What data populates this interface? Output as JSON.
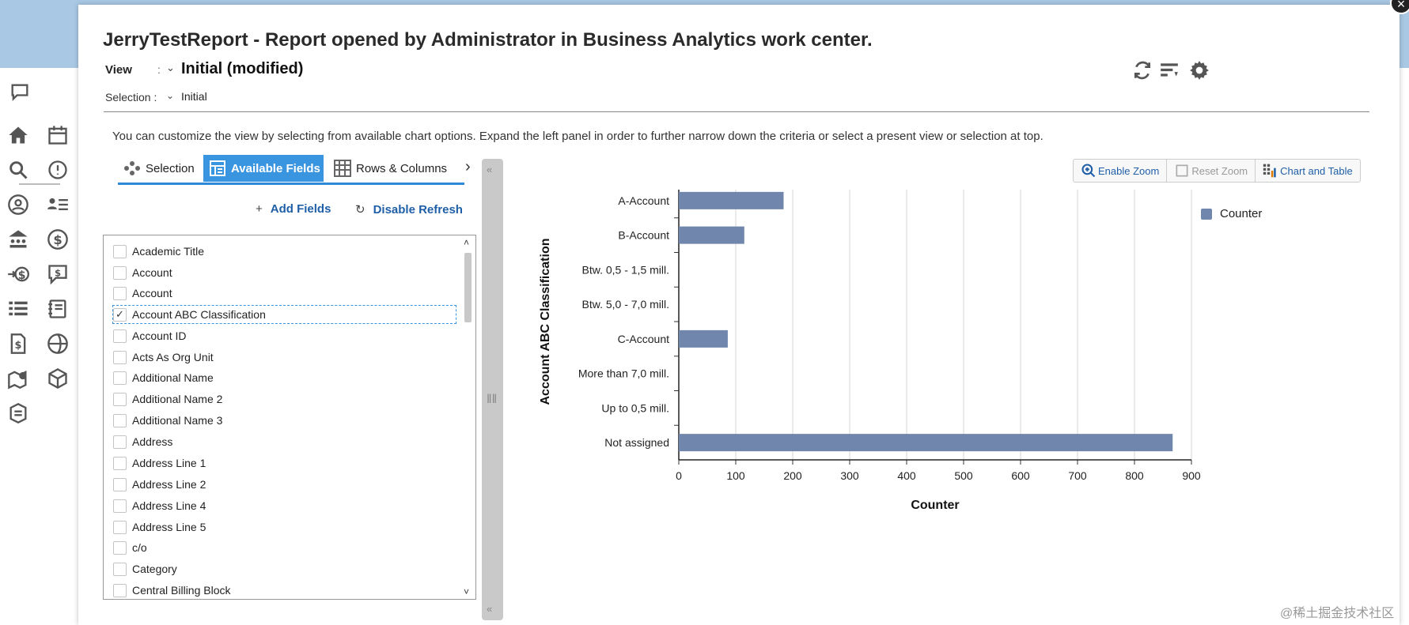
{
  "dialog": {
    "title": "JerryTestReport - Report opened by Administrator in Business Analytics work center.",
    "view_label": "View",
    "view_value": "Initial (modified)",
    "selection_label": "Selection :",
    "selection_value": "Initial",
    "hint": "You can customize the view by selecting from available chart options. Expand the left panel in order to further narrow down the criteria or select a present view or selection at top."
  },
  "tabs": [
    {
      "label": "Selection",
      "icon": "selection-icon"
    },
    {
      "label": "Available Fields",
      "icon": "fields-icon",
      "active": true
    },
    {
      "label": "Rows & Columns",
      "icon": "grid-icon"
    }
  ],
  "actions": {
    "add_fields": "Add Fields",
    "disable_refresh": "Disable Refresh"
  },
  "fields": [
    {
      "label": "Academic Title",
      "checked": false
    },
    {
      "label": "Account",
      "checked": false
    },
    {
      "label": "Account",
      "checked": false
    },
    {
      "label": "Account ABC Classification",
      "checked": true
    },
    {
      "label": "Account ID",
      "checked": false
    },
    {
      "label": "Acts As Org Unit",
      "checked": false
    },
    {
      "label": "Additional Name",
      "checked": false
    },
    {
      "label": "Additional Name 2",
      "checked": false
    },
    {
      "label": "Additional Name 3",
      "checked": false
    },
    {
      "label": "Address",
      "checked": false
    },
    {
      "label": "Address Line 1",
      "checked": false
    },
    {
      "label": "Address Line 2",
      "checked": false
    },
    {
      "label": "Address Line 4",
      "checked": false
    },
    {
      "label": "Address Line 5",
      "checked": false
    },
    {
      "label": "c/o",
      "checked": false
    },
    {
      "label": "Category",
      "checked": false
    },
    {
      "label": "Central Billing Block",
      "checked": false
    }
  ],
  "chart_tools": {
    "enable_zoom": "Enable Zoom",
    "reset_zoom": "Reset Zoom",
    "chart_and_table": "Chart and Table"
  },
  "chart_data": {
    "type": "bar",
    "orientation": "horizontal",
    "categories": [
      "A-Account",
      "B-Account",
      "Btw. 0,5 - 1,5 mill.",
      "Btw. 5,0 - 7,0 mill.",
      "C-Account",
      "More than 7,0 mill.",
      "Up to 0,5 mill.",
      "Not assigned"
    ],
    "series": [
      {
        "name": "Counter",
        "values": [
          184,
          115,
          0,
          0,
          86,
          0,
          0,
          867
        ]
      }
    ],
    "xlabel": "Counter",
    "ylabel": "Account ABC Classification",
    "xlim": [
      0,
      900
    ],
    "xticks": [
      0,
      100,
      200,
      300,
      400,
      500,
      600,
      700,
      800,
      900
    ],
    "grid": true,
    "legend": "top-right",
    "bar_color": "#7186ad"
  },
  "watermark": "@稀土掘金技术社区"
}
